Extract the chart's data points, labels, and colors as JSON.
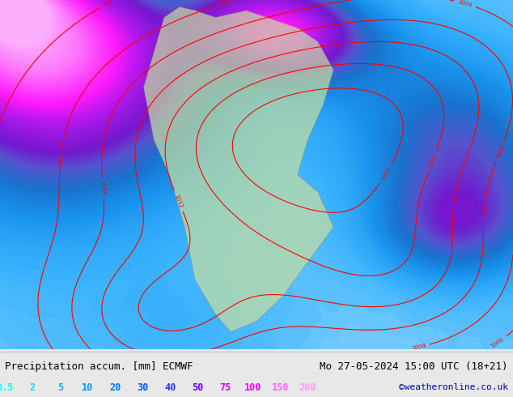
{
  "title_left": "Precipitation accum. [mm] ECMWF",
  "title_right": "Mo 27-05-2024 15:00 UTC (18+21)",
  "credit": "©weatheronline.co.uk",
  "legend_values": [
    "0.5",
    "2",
    "5",
    "10",
    "20",
    "30",
    "40",
    "50",
    "75",
    "100",
    "150",
    "200"
  ],
  "legend_colors": [
    "#00ffff",
    "#00ddff",
    "#00bbff",
    "#0099ff",
    "#0077ff",
    "#0055ff",
    "#3333ff",
    "#6600ff",
    "#cc00ff",
    "#ff00ff",
    "#ff66ff",
    "#ff99ff"
  ],
  "bg_color": "#e8e8e8",
  "map_bg": "#d0e8ff",
  "figsize": [
    6.34,
    4.9
  ],
  "dpi": 100
}
